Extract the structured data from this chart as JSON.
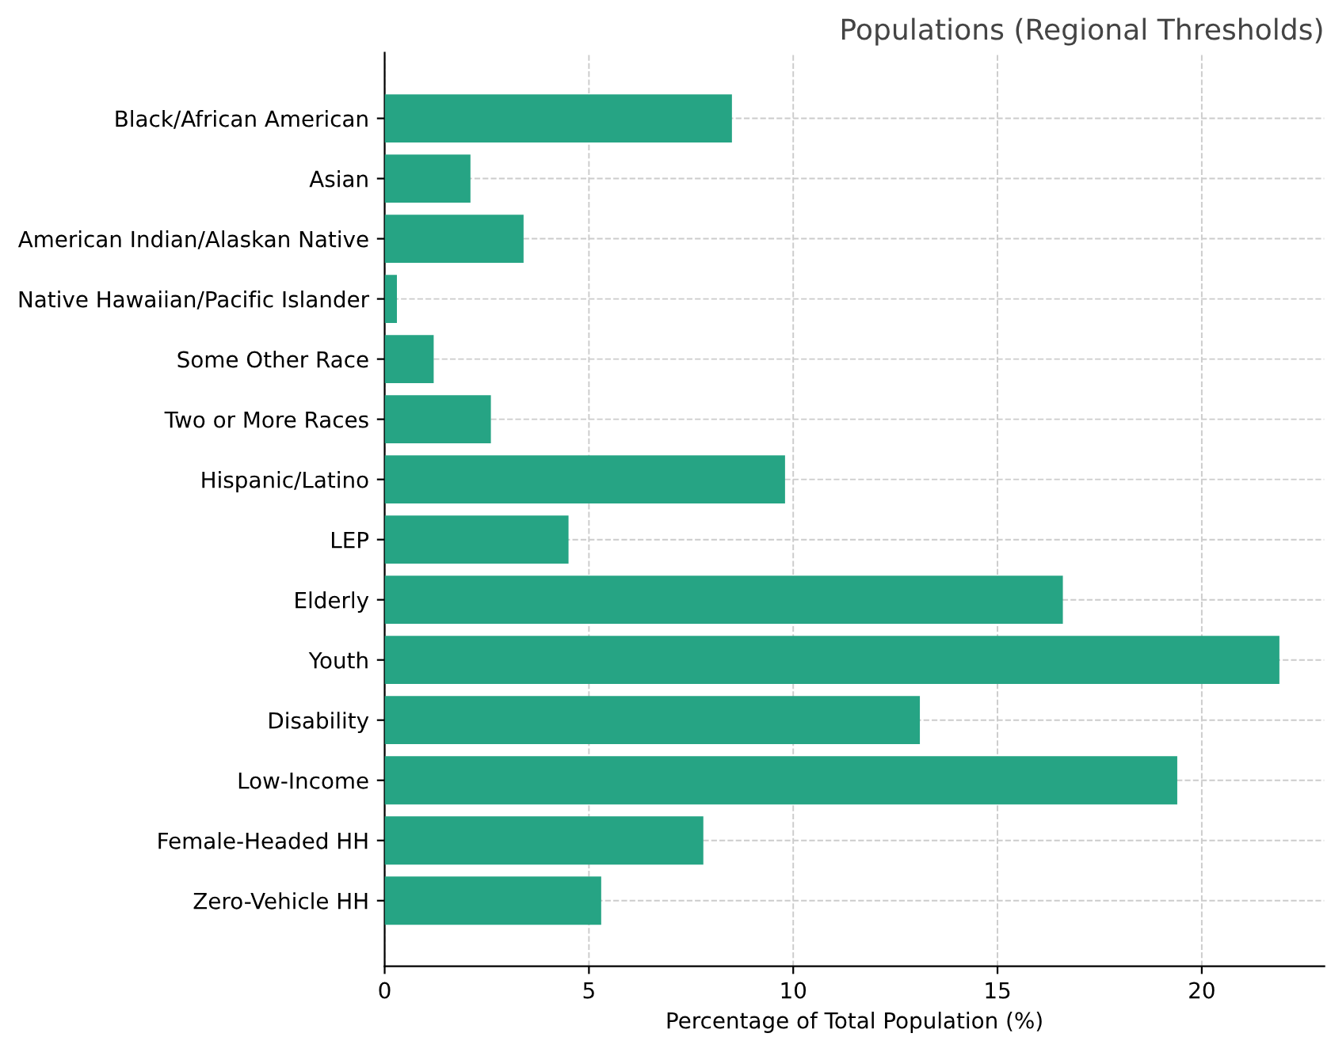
{
  "chart_data": {
    "type": "bar",
    "orientation": "horizontal",
    "title": "Populations (Regional Thresholds)",
    "xlabel": "Percentage of Total Population (%)",
    "categories": [
      "Black/African American",
      "Asian",
      "American Indian/Alaskan Native",
      "Native Hawaiian/Pacific Islander",
      "Some Other Race",
      "Two or More Races",
      "Hispanic/Latino",
      "LEP",
      "Elderly",
      "Youth",
      "Disability",
      "Low-Income",
      "Female-Headed HH",
      "Zero-Vehicle HH"
    ],
    "values": [
      8.5,
      2.1,
      3.4,
      0.3,
      1.2,
      2.6,
      9.8,
      4.5,
      16.6,
      21.9,
      13.1,
      19.4,
      7.8,
      5.3
    ],
    "color": "#26a484",
    "xlim": [
      0,
      23
    ],
    "xticks": [
      0,
      5,
      10,
      15,
      20
    ],
    "grid": true
  }
}
